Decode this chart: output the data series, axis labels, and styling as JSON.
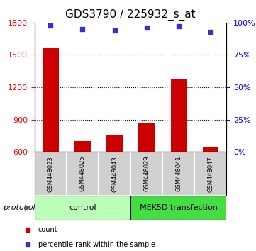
{
  "title": "GDS3790 / 225932_s_at",
  "samples": [
    "GSM448023",
    "GSM448025",
    "GSM448043",
    "GSM448029",
    "GSM448041",
    "GSM448047"
  ],
  "counts": [
    1560,
    700,
    760,
    870,
    1270,
    650
  ],
  "percentile_ranks": [
    98,
    95,
    94,
    96,
    97,
    93
  ],
  "ylim_left": [
    600,
    1800
  ],
  "ylim_right": [
    0,
    100
  ],
  "yticks_left": [
    600,
    900,
    1200,
    1500,
    1800
  ],
  "yticks_right": [
    0,
    25,
    50,
    75,
    100
  ],
  "bar_color": "#cc0000",
  "dot_color": "#3333cc",
  "bar_baseline": 600,
  "control_color": "#bbffbb",
  "mek_color": "#44dd44",
  "protocol_label": "protocol",
  "legend_items": [
    {
      "color": "#cc0000",
      "label": "count"
    },
    {
      "color": "#3333cc",
      "label": "percentile rank within the sample"
    }
  ],
  "dotted_yticks": [
    900,
    1200,
    1500
  ],
  "title_fontsize": 11,
  "tick_fontsize": 8,
  "sample_fontsize": 6,
  "group_fontsize": 8,
  "legend_fontsize": 7
}
